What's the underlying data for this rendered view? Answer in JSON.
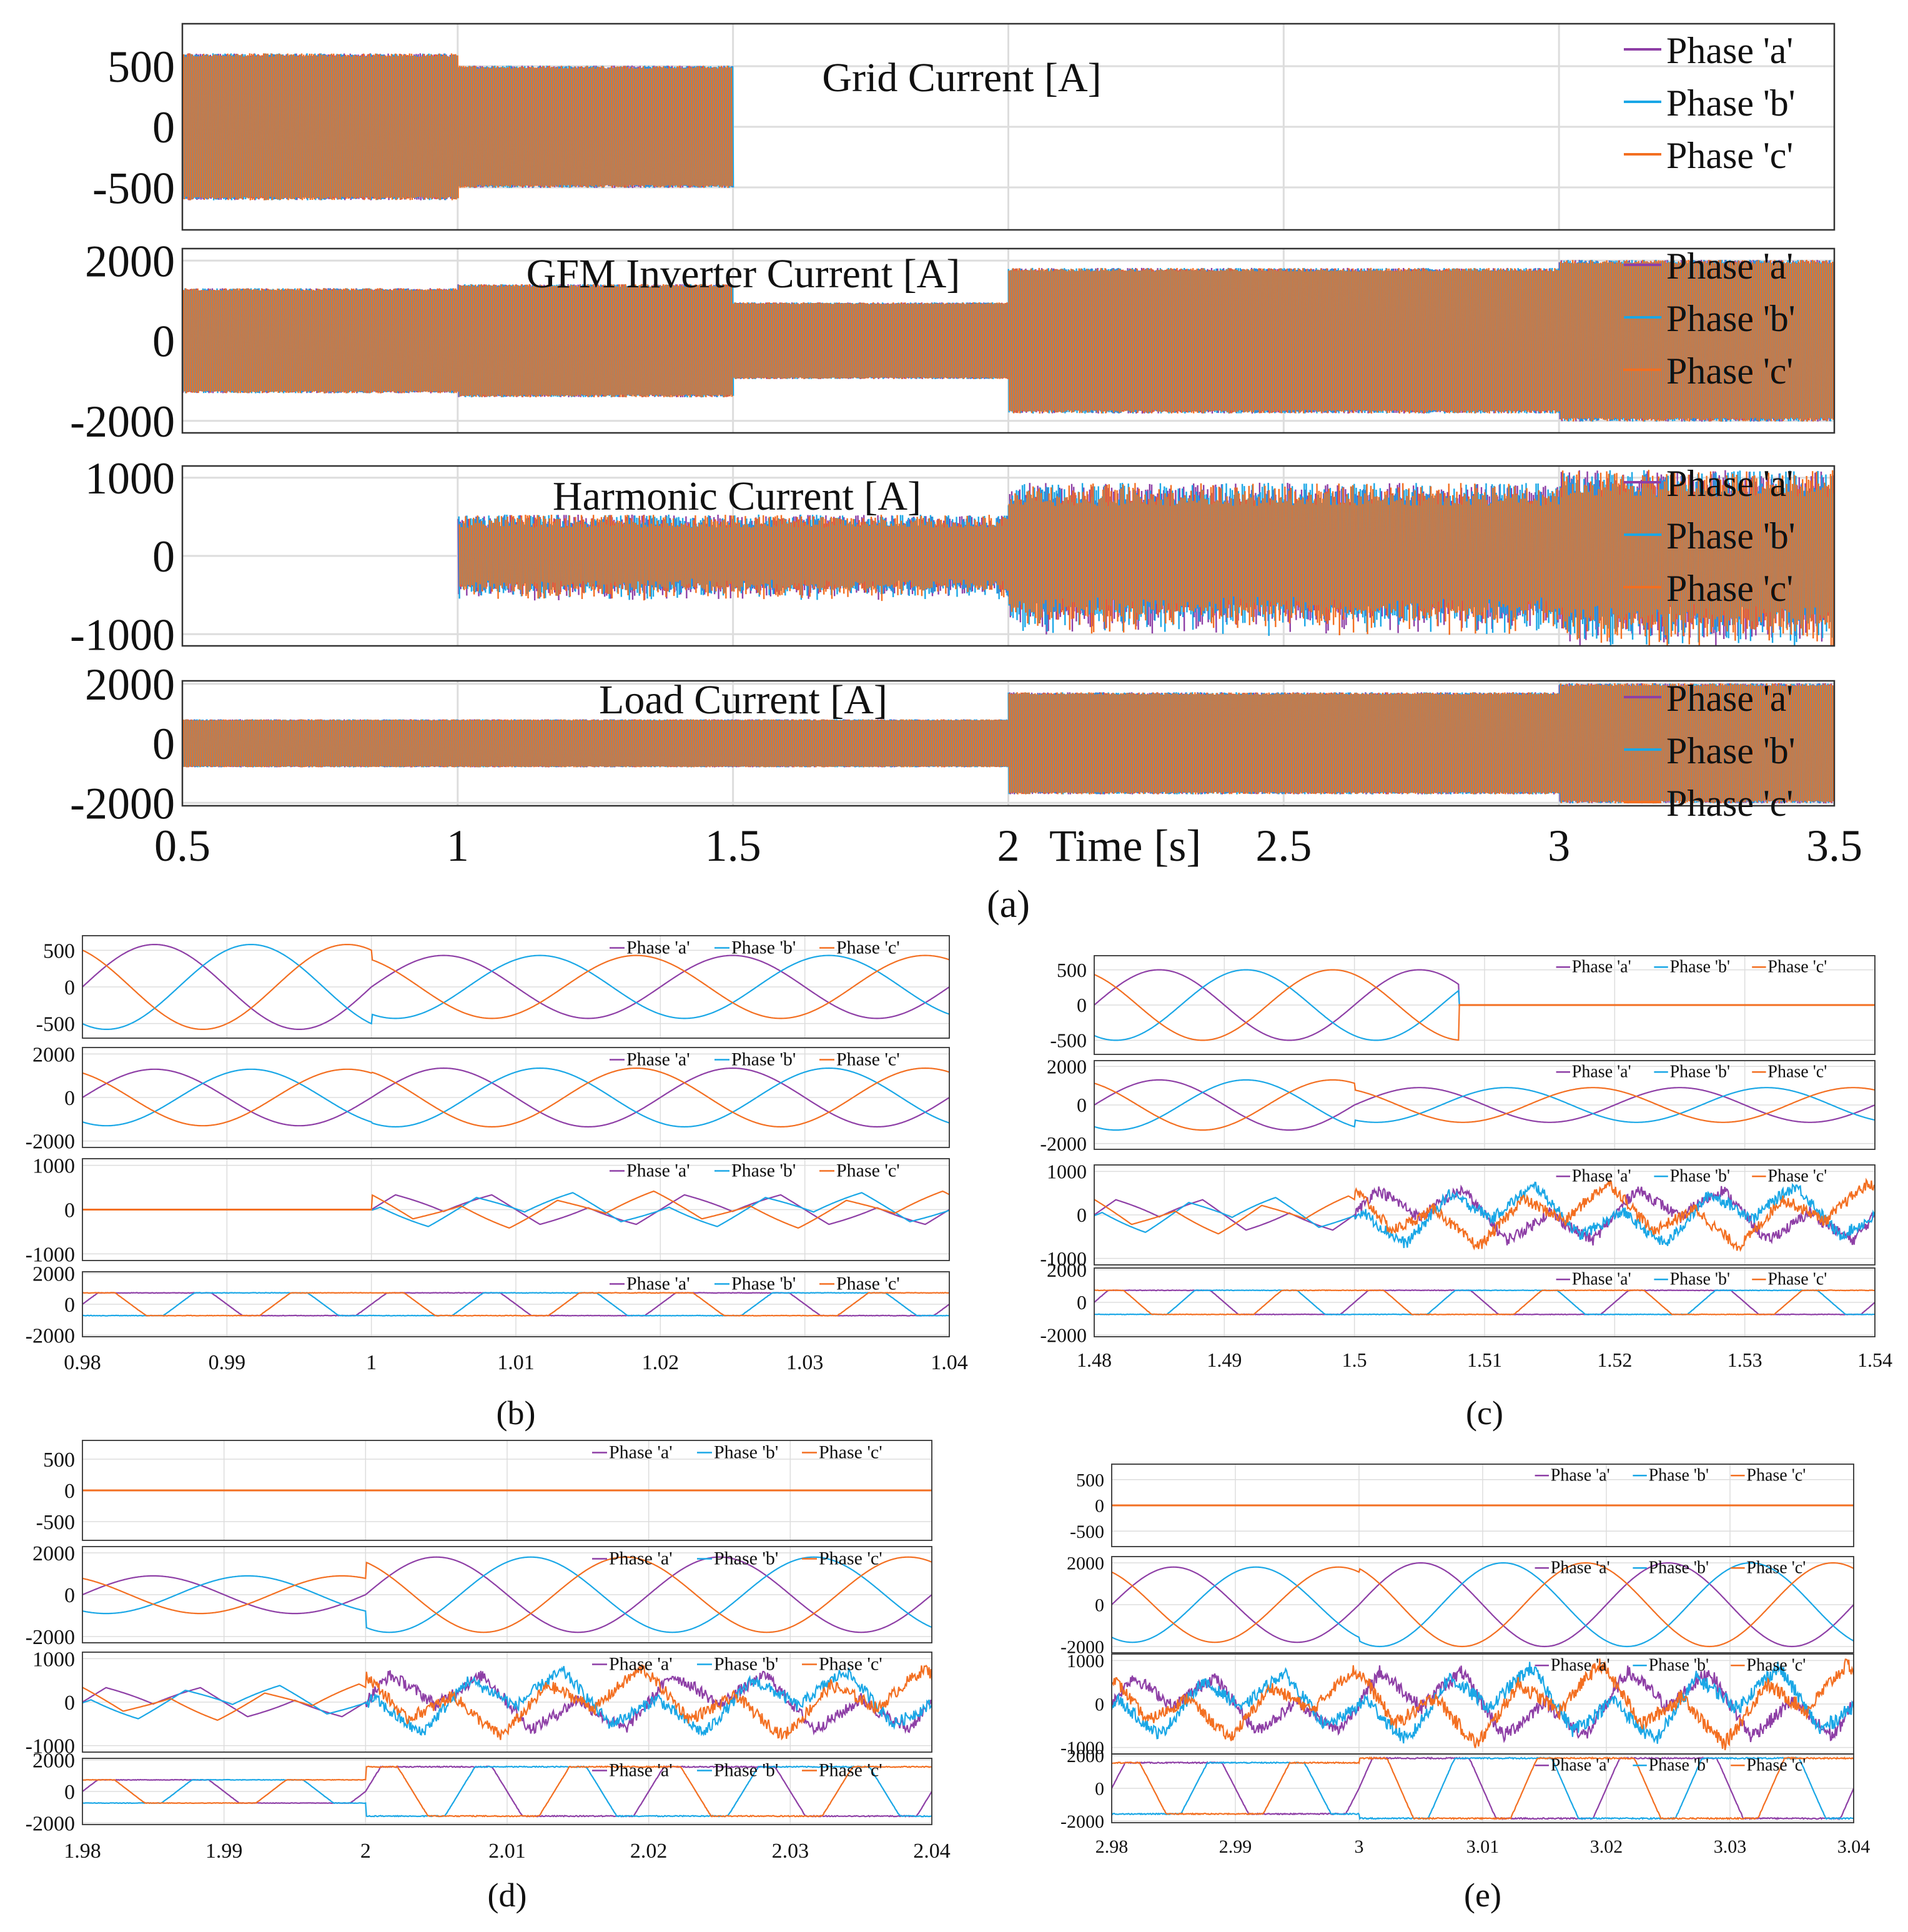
{
  "colors": {
    "a": "#8e3fa6",
    "b": "#1aa7e6",
    "c": "#f36f21",
    "grid": "#dddddd",
    "axis": "#333333"
  },
  "legend_labels": [
    "Phase 'a'",
    "Phase 'b'",
    "Phase 'c'"
  ],
  "chart_data": [
    {
      "panel": "a",
      "type": "line",
      "caption": "(a)",
      "xlabel": "Time [s]",
      "xlim": [
        0.5,
        3.5
      ],
      "xticks": [
        "0.5",
        "1",
        "1.5",
        "2",
        "2.5",
        "3",
        "3.5"
      ],
      "subplots": [
        {
          "title": "Grid Current [A]",
          "ylim": [
            -850,
            850
          ],
          "yticks": [
            {
              "v": 500,
              "t": "500"
            },
            {
              "v": 0,
              "t": "0"
            },
            {
              "v": -500,
              "t": "-500"
            }
          ],
          "envelope": [
            {
              "from": 0.5,
              "to": 1.0,
              "amp": 600
            },
            {
              "from": 1.0,
              "to": 1.5,
              "amp": 500
            },
            {
              "from": 1.5,
              "to": 3.5,
              "amp": 0
            }
          ],
          "series": [
            "Phase 'a'",
            "Phase 'b'",
            "Phase 'c'"
          ]
        },
        {
          "title": "GFM Inverter Current [A]",
          "ylim": [
            -2300,
            2300
          ],
          "yticks": [
            {
              "v": 2000,
              "t": "2000"
            },
            {
              "v": 0,
              "t": "0"
            },
            {
              "v": -2000,
              "t": "-2000"
            }
          ],
          "envelope": [
            {
              "from": 0.5,
              "to": 1.0,
              "amp": 1300
            },
            {
              "from": 1.0,
              "to": 1.5,
              "amp": 1400
            },
            {
              "from": 1.5,
              "to": 2.0,
              "amp": 950
            },
            {
              "from": 2.0,
              "to": 3.0,
              "amp": 1800
            },
            {
              "from": 3.0,
              "to": 3.5,
              "amp": 2000
            }
          ],
          "series": [
            "Phase 'a'",
            "Phase 'b'",
            "Phase 'c'"
          ]
        },
        {
          "title": "Harmonic Current [A]",
          "ylim": [
            -1150,
            1150
          ],
          "yticks": [
            {
              "v": 1000,
              "t": "1000"
            },
            {
              "v": 0,
              "t": "0"
            },
            {
              "v": -1000,
              "t": "-1000"
            }
          ],
          "envelope": [
            {
              "from": 0.5,
              "to": 1.0,
              "amp": 0
            },
            {
              "from": 1.0,
              "to": 2.0,
              "amp": 480
            },
            {
              "from": 2.0,
              "to": 3.0,
              "amp": 850
            },
            {
              "from": 3.0,
              "to": 3.5,
              "amp": 1000
            }
          ],
          "series": [
            "Phase 'a'",
            "Phase 'b'",
            "Phase 'c'"
          ]
        },
        {
          "title": "Load Current [A]",
          "ylim": [
            -2100,
            2100
          ],
          "yticks": [
            {
              "v": 2000,
              "t": "2000"
            },
            {
              "v": 0,
              "t": "0"
            },
            {
              "v": -2000,
              "t": "-2000"
            }
          ],
          "envelope": [
            {
              "from": 0.5,
              "to": 2.0,
              "amp": 800
            },
            {
              "from": 2.0,
              "to": 3.0,
              "amp": 1700
            },
            {
              "from": 3.0,
              "to": 3.5,
              "amp": 2000
            }
          ],
          "series": [
            "Phase 'a'",
            "Phase 'b'",
            "Phase 'c'"
          ]
        }
      ]
    },
    {
      "panel": "b",
      "type": "line",
      "caption": "(b)",
      "xlim": [
        0.98,
        1.04
      ],
      "xticks": [
        "0.98",
        "0.99",
        "1",
        "1.01",
        "1.02",
        "1.03",
        "1.04"
      ],
      "subplots": [
        {
          "ylim": [
            -700,
            700
          ],
          "yticks": [
            {
              "v": 500,
              "t": "500"
            },
            {
              "v": 0,
              "t": "0"
            },
            {
              "v": -500,
              "t": "-500"
            }
          ],
          "segments": [
            {
              "from": 0.98,
              "to": 1.0,
              "amp": 580
            },
            {
              "from": 1.0,
              "to": 1.04,
              "amp": 430
            }
          ]
        },
        {
          "ylim": [
            -2300,
            2300
          ],
          "yticks": [
            {
              "v": 2000,
              "t": "2000"
            },
            {
              "v": 0,
              "t": "0"
            },
            {
              "v": -2000,
              "t": "-2000"
            }
          ],
          "segments": [
            {
              "from": 0.98,
              "to": 1.0,
              "amp": 1300
            },
            {
              "from": 1.0,
              "to": 1.04,
              "amp": 1350
            }
          ]
        },
        {
          "ylim": [
            -1150,
            1150
          ],
          "yticks": [
            {
              "v": 1000,
              "t": "1000"
            },
            {
              "v": 0,
              "t": "0"
            },
            {
              "v": -1000,
              "t": "-1000"
            }
          ],
          "segments": [
            {
              "from": 0.98,
              "to": 1.0,
              "amp": 0
            },
            {
              "from": 1.0,
              "to": 1.04,
              "amp": 430
            }
          ]
        },
        {
          "ylim": [
            -2100,
            2100
          ],
          "yticks": [
            {
              "v": 2000,
              "t": "2000"
            },
            {
              "v": 0,
              "t": "0"
            },
            {
              "v": -2000,
              "t": "-2000"
            }
          ],
          "segments": [
            {
              "from": 0.98,
              "to": 1.04,
              "amp": 800
            }
          ]
        }
      ]
    },
    {
      "panel": "c",
      "type": "line",
      "caption": "(c)",
      "xlim": [
        1.48,
        1.54
      ],
      "xticks": [
        "1.48",
        "1.49",
        "1.5",
        "1.51",
        "1.52",
        "1.53",
        "1.54"
      ],
      "subplots": [
        {
          "ylim": [
            -700,
            700
          ],
          "yticks": [
            {
              "v": 500,
              "t": "500"
            },
            {
              "v": 0,
              "t": "0"
            },
            {
              "v": -500,
              "t": "-500"
            }
          ],
          "segments": [
            {
              "from": 1.48,
              "to": 1.508,
              "amp": 500
            },
            {
              "from": 1.508,
              "to": 1.54,
              "amp": 0
            }
          ]
        },
        {
          "ylim": [
            -2300,
            2300
          ],
          "yticks": [
            {
              "v": 2000,
              "t": "2000"
            },
            {
              "v": 0,
              "t": "0"
            },
            {
              "v": -2000,
              "t": "-2000"
            }
          ],
          "segments": [
            {
              "from": 1.48,
              "to": 1.5,
              "amp": 1300
            },
            {
              "from": 1.5,
              "to": 1.54,
              "amp": 900
            }
          ]
        },
        {
          "ylim": [
            -1150,
            1150
          ],
          "yticks": [
            {
              "v": 1000,
              "t": "1000"
            },
            {
              "v": 0,
              "t": "0"
            },
            {
              "v": -1000,
              "t": "-1000"
            }
          ],
          "segments": [
            {
              "from": 1.48,
              "to": 1.5,
              "amp": 450
            },
            {
              "from": 1.5,
              "to": 1.54,
              "amp": 750
            }
          ]
        },
        {
          "ylim": [
            -2100,
            2100
          ],
          "yticks": [
            {
              "v": 2000,
              "t": "2000"
            },
            {
              "v": 0,
              "t": "0"
            },
            {
              "v": -2000,
              "t": "-2000"
            }
          ],
          "segments": [
            {
              "from": 1.48,
              "to": 1.54,
              "amp": 800
            }
          ]
        }
      ]
    },
    {
      "panel": "d",
      "type": "line",
      "caption": "(d)",
      "xlim": [
        1.98,
        2.04
      ],
      "xticks": [
        "1.98",
        "1.99",
        "2",
        "2.01",
        "2.02",
        "2.03",
        "2.04"
      ],
      "subplots": [
        {
          "ylim": [
            -800,
            800
          ],
          "yticks": [
            {
              "v": 500,
              "t": "500"
            },
            {
              "v": 0,
              "t": "0"
            },
            {
              "v": -500,
              "t": "-500"
            }
          ],
          "segments": [
            {
              "from": 1.98,
              "to": 2.04,
              "amp": 0
            }
          ]
        },
        {
          "ylim": [
            -2300,
            2300
          ],
          "yticks": [
            {
              "v": 2000,
              "t": "2000"
            },
            {
              "v": 0,
              "t": "0"
            },
            {
              "v": -2000,
              "t": "-2000"
            }
          ],
          "segments": [
            {
              "from": 1.98,
              "to": 2.0,
              "amp": 900
            },
            {
              "from": 2.0,
              "to": 2.04,
              "amp": 1800
            }
          ]
        },
        {
          "ylim": [
            -1150,
            1150
          ],
          "yticks": [
            {
              "v": 1000,
              "t": "1000"
            },
            {
              "v": 0,
              "t": "0"
            },
            {
              "v": -1000,
              "t": "-1000"
            }
          ],
          "segments": [
            {
              "from": 1.98,
              "to": 2.0,
              "amp": 430
            },
            {
              "from": 2.0,
              "to": 2.04,
              "amp": 800
            }
          ]
        },
        {
          "ylim": [
            -2100,
            2100
          ],
          "yticks": [
            {
              "v": 2000,
              "t": "2000"
            },
            {
              "v": 0,
              "t": "0"
            },
            {
              "v": -2000,
              "t": "-2000"
            }
          ],
          "segments": [
            {
              "from": 1.98,
              "to": 2.0,
              "amp": 800
            },
            {
              "from": 2.0,
              "to": 2.04,
              "amp": 1700
            }
          ]
        }
      ]
    },
    {
      "panel": "e",
      "type": "line",
      "caption": "(e)",
      "xlim": [
        2.98,
        3.04
      ],
      "xticks": [
        "2.98",
        "2.99",
        "3",
        "3.01",
        "3.02",
        "3.03",
        "3.04"
      ],
      "subplots": [
        {
          "ylim": [
            -800,
            800
          ],
          "yticks": [
            {
              "v": 500,
              "t": "500"
            },
            {
              "v": 0,
              "t": "0"
            },
            {
              "v": -500,
              "t": "-500"
            }
          ],
          "segments": [
            {
              "from": 2.98,
              "to": 3.04,
              "amp": 0
            }
          ]
        },
        {
          "ylim": [
            -2300,
            2300
          ],
          "yticks": [
            {
              "v": 2000,
              "t": "2000"
            },
            {
              "v": 0,
              "t": "0"
            },
            {
              "v": -2000,
              "t": "-2000"
            }
          ],
          "segments": [
            {
              "from": 2.98,
              "to": 3.0,
              "amp": 1800
            },
            {
              "from": 3.0,
              "to": 3.04,
              "amp": 2000
            }
          ]
        },
        {
          "ylim": [
            -1150,
            1150
          ],
          "yticks": [
            {
              "v": 1000,
              "t": "1000"
            },
            {
              "v": 0,
              "t": "0"
            },
            {
              "v": -1000,
              "t": "-1000"
            }
          ],
          "segments": [
            {
              "from": 2.98,
              "to": 3.0,
              "amp": 800
            },
            {
              "from": 3.0,
              "to": 3.04,
              "amp": 950
            }
          ]
        },
        {
          "ylim": [
            -2100,
            2100
          ],
          "yticks": [
            {
              "v": 2000,
              "t": "2000"
            },
            {
              "v": 0,
              "t": "0"
            },
            {
              "v": -2000,
              "t": "-2000"
            }
          ],
          "segments": [
            {
              "from": 2.98,
              "to": 3.0,
              "amp": 1700
            },
            {
              "from": 3.0,
              "to": 3.04,
              "amp": 2000
            }
          ]
        }
      ]
    }
  ]
}
